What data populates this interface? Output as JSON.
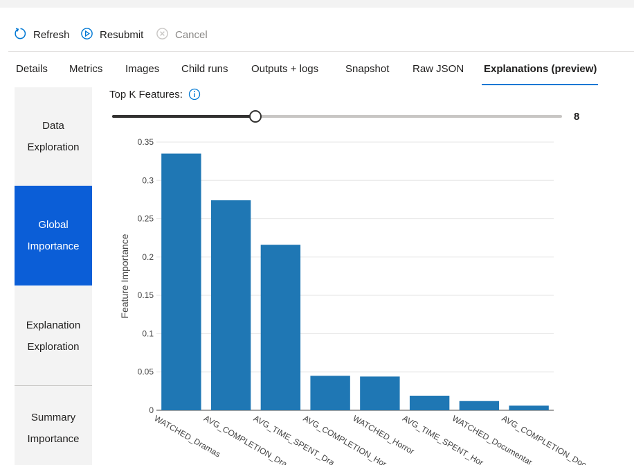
{
  "toolbar": {
    "refresh_label": "Refresh",
    "resubmit_label": "Resubmit",
    "cancel_label": "Cancel"
  },
  "tabs": [
    {
      "label": "Details"
    },
    {
      "label": "Metrics"
    },
    {
      "label": "Images"
    },
    {
      "label": "Child runs"
    },
    {
      "label": "Outputs + logs"
    },
    {
      "label": "Snapshot"
    },
    {
      "label": "Raw JSON"
    },
    {
      "label": "Explanations (preview)",
      "active": true
    }
  ],
  "sidenav": {
    "items": [
      {
        "line1": "Data",
        "line2": "Exploration"
      },
      {
        "line1": "Global",
        "line2": "Importance",
        "active": true
      },
      {
        "line1": "Explanation",
        "line2": "Exploration"
      },
      {
        "line1": "Summary",
        "line2": "Importance"
      }
    ]
  },
  "topk": {
    "label": "Top K Features:",
    "value": "8",
    "min": 1,
    "max": 23
  },
  "colors": {
    "accent": "#0078d4",
    "nav_active": "#0b5ed7",
    "bar": "#1f77b4"
  },
  "chart_data": {
    "type": "bar",
    "categories": [
      "WATCHED_Dramas",
      "AVG_COMPLETION_Dra...",
      "AVG_TIME_SPENT_Dra...",
      "AVG_COMPLETION_Hor...",
      "WATCHED_Horror",
      "AVG_TIME_SPENT_Hor...",
      "WATCHED_Documentar...",
      "AVG_COMPLETION_Doc..."
    ],
    "values": [
      0.335,
      0.274,
      0.216,
      0.045,
      0.044,
      0.019,
      0.012,
      0.006
    ],
    "title": "",
    "xlabel": "",
    "ylabel": "Feature Importance",
    "ylim": [
      0,
      0.35
    ],
    "yticks": [
      "0",
      "0.05",
      "0.1",
      "0.15",
      "0.2",
      "0.25",
      "0.3",
      "0.35"
    ],
    "grid": true
  }
}
